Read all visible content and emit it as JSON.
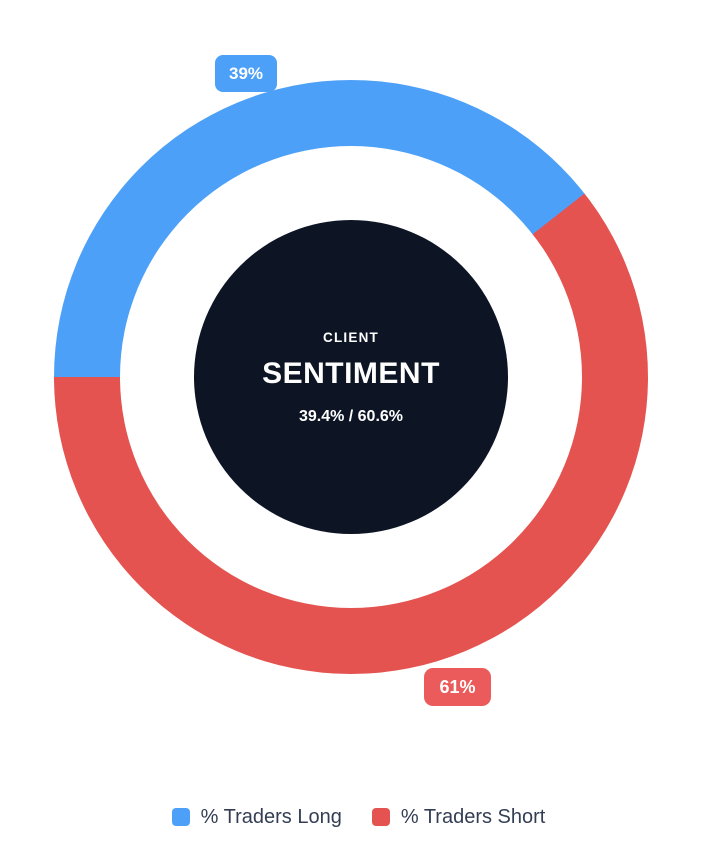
{
  "chart_data": {
    "type": "pie",
    "variant": "donut-gauge",
    "title": "CLIENT SENTIMENT",
    "start_angle": "left (9 o'clock), sweeping clockwise",
    "legend_position": "bottom",
    "series": [
      {
        "name": "% Traders Long",
        "value": 39.4,
        "badge": "39%",
        "color": "#4da0f7",
        "badge_color": "#4da0f7"
      },
      {
        "name": "% Traders Short",
        "value": 60.6,
        "badge": "61%",
        "color": "#e4534f",
        "badge_color": "#ec5b5b"
      }
    ],
    "center_labels": {
      "top": "CLIENT",
      "main": "SENTIMENT",
      "sub": "39.4% / 60.6%"
    }
  },
  "legend": {
    "items": [
      {
        "label": "% Traders Long",
        "color": "#4da0f7"
      },
      {
        "label": "% Traders Short",
        "color": "#e4534f"
      }
    ]
  },
  "colors": {
    "background": "#ffffff",
    "center_disc": "#0d1424",
    "center_text": "#ffffff",
    "legend_text": "#333e54"
  }
}
